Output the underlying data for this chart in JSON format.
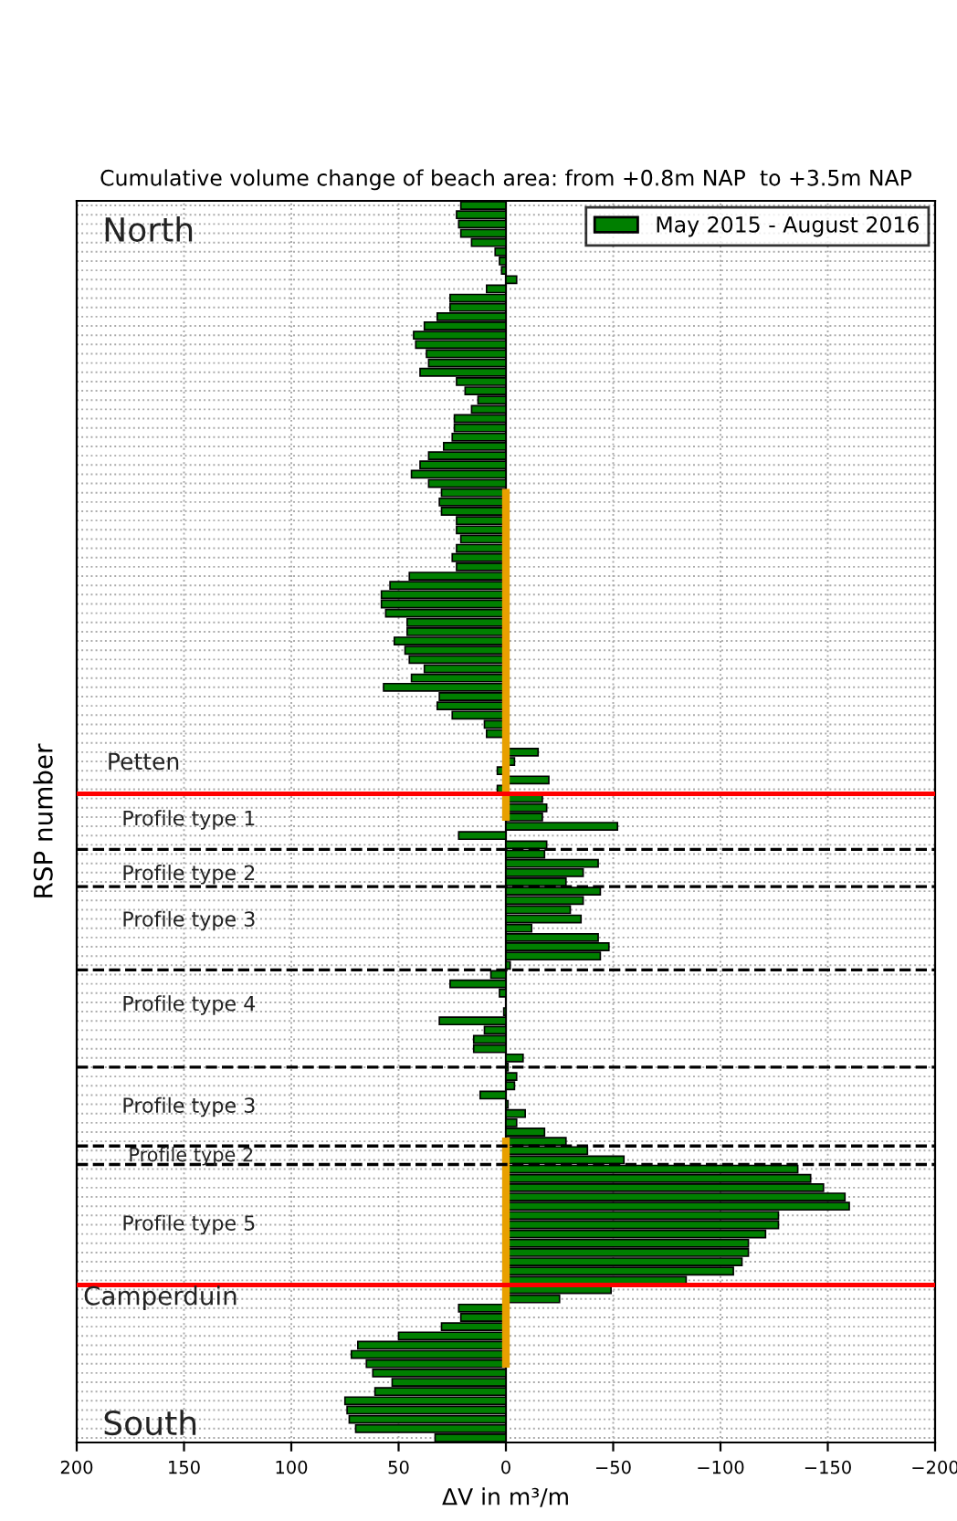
{
  "chart_data": {
    "type": "bar",
    "orientation": "horizontal",
    "title": "Cumulative volume change of beach area: from +0.8m NAP  to +3.5m NAP",
    "xlabel": "ΔV in m³/m",
    "ylabel": "RSP number",
    "categories": [
      null,
      null,
      null,
      null,
      null,
      null,
      null,
      null,
      null,
      null,
      null,
      null,
      null,
      null,
      null,
      null,
      null,
      null,
      null,
      null,
      null,
      null,
      null,
      null,
      null,
      null,
      null,
      null,
      null,
      null,
      null,
      null,
      null,
      null,
      null,
      null,
      null,
      null,
      null,
      null,
      null,
      null,
      null,
      null,
      null,
      null,
      null,
      null,
      null,
      null,
      null,
      null,
      null,
      null,
      null,
      null,
      null,
      null,
      null,
      null,
      null,
      null,
      null,
      null,
      null,
      null,
      null,
      null,
      null,
      null,
      null,
      null,
      null,
      null,
      null,
      null,
      null,
      null,
      null,
      null,
      null,
      null,
      null,
      null,
      null,
      null,
      null,
      null,
      null,
      null,
      null,
      null,
      null,
      null,
      null,
      null,
      null,
      null,
      null,
      null,
      null,
      null,
      null,
      null,
      null,
      null,
      null,
      null,
      null,
      null,
      null,
      null,
      null,
      null,
      null,
      null,
      null,
      null,
      null,
      null,
      null,
      null,
      null,
      null,
      null,
      null,
      null,
      null,
      null,
      null,
      null,
      null,
      null,
      null
    ],
    "series": [
      {
        "name": "May 2015 - August 2016",
        "color": "#007f00",
        "values": [
          21,
          23,
          22,
          21,
          16,
          5,
          3,
          2,
          -5,
          9,
          26,
          26,
          32,
          38,
          43,
          42,
          37,
          36,
          40,
          23,
          19,
          13,
          16,
          24,
          24,
          25,
          29,
          36,
          40,
          44,
          36,
          30,
          31,
          30,
          23,
          23,
          21,
          23,
          25,
          23,
          45,
          54,
          58,
          58,
          56,
          46,
          46,
          52,
          47,
          45,
          38,
          44,
          57,
          31,
          32,
          25,
          10,
          9,
          -1,
          -15,
          -4,
          4,
          -20,
          4,
          -17,
          -19,
          -17,
          -52,
          22,
          -19,
          -18,
          -43,
          -36,
          -28,
          -44,
          -36,
          -30,
          -35,
          -12,
          -43,
          -48,
          -44,
          -2,
          7,
          26,
          3,
          null,
          1,
          31,
          10,
          15,
          15,
          -8,
          -1,
          -5,
          -4,
          12,
          -1,
          -9,
          -5,
          -18,
          -28,
          -38,
          -55,
          -136,
          -142,
          -148,
          -158,
          -160,
          -127,
          -127,
          -121,
          -113,
          -113,
          -110,
          -106,
          -84,
          -49,
          -25,
          22,
          21,
          30,
          50,
          69,
          72,
          65,
          62,
          53,
          61,
          75,
          74,
          73,
          70,
          33
        ]
      },
      {
        "color": "#e8a000",
        "type": "line",
        "values": [
          null,
          null,
          null,
          null,
          null,
          null,
          null,
          null,
          null,
          null,
          null,
          null,
          null,
          null,
          null,
          null,
          null,
          null,
          null,
          null,
          null,
          null,
          null,
          null,
          null,
          null,
          null,
          null,
          null,
          null,
          null,
          0,
          0,
          0,
          0,
          0,
          0,
          0,
          0,
          0,
          0,
          0,
          0,
          0,
          0,
          0,
          0,
          0,
          0,
          0,
          0,
          0,
          0,
          0,
          0,
          0,
          0,
          0,
          0,
          0,
          0,
          0,
          0,
          0,
          0,
          0,
          0,
          null,
          null,
          null,
          null,
          null,
          null,
          null,
          null,
          null,
          null,
          null,
          null,
          null,
          null,
          null,
          null,
          null,
          null,
          null,
          null,
          null,
          null,
          null,
          null,
          null,
          null,
          null,
          null,
          null,
          null,
          null,
          null,
          null,
          null,
          0,
          0,
          0,
          0,
          0,
          0,
          0,
          0,
          0,
          0,
          0,
          0,
          0,
          0,
          0,
          0,
          0,
          0,
          0,
          0,
          0,
          0,
          0,
          0,
          0,
          null,
          null,
          null,
          null,
          null,
          null,
          null,
          null
        ]
      }
    ],
    "xlim": [
      200,
      -200
    ],
    "xticks": [
      200,
      150,
      100,
      50,
      0,
      {
        "value": -50,
        "label": "−50"
      },
      {
        "value": -100,
        "label": "−100"
      },
      {
        "value": -150,
        "label": "−150"
      },
      {
        "value": -200,
        "label": "−200"
      }
    ],
    "annotations": [
      "North",
      "Petten",
      "Profile type 1",
      "Profile type 2",
      "Profile type 3",
      "Profile type 4",
      "Profile type 3",
      "Profile type 2",
      "Profile type 5",
      "Camperduin",
      "South"
    ],
    "grid": true,
    "legend": "top right"
  }
}
